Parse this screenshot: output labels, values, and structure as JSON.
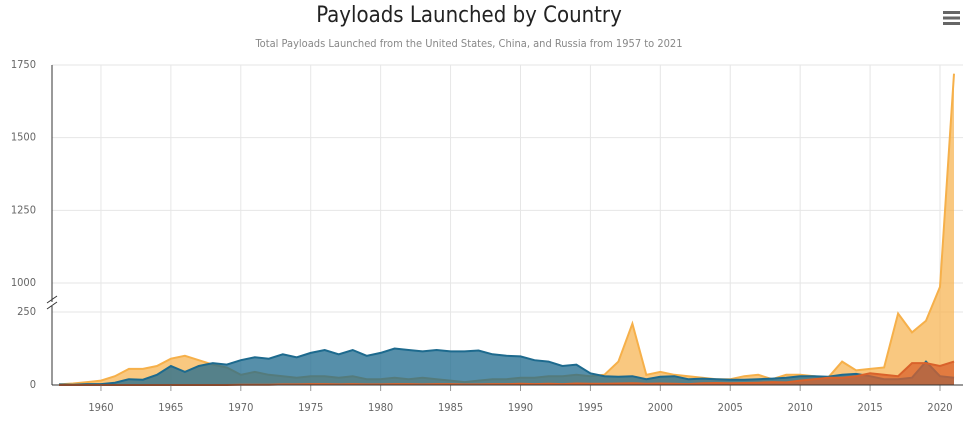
{
  "chart_data": {
    "type": "area",
    "title": "Payloads Launched by Country",
    "subtitle": "Total Payloads Launched from the United States, China, and Russia from 1957 to 2021",
    "x": [
      1957,
      1958,
      1959,
      1960,
      1961,
      1962,
      1963,
      1964,
      1965,
      1966,
      1967,
      1968,
      1969,
      1970,
      1971,
      1972,
      1973,
      1974,
      1975,
      1976,
      1977,
      1978,
      1979,
      1980,
      1981,
      1982,
      1983,
      1984,
      1985,
      1986,
      1987,
      1988,
      1989,
      1990,
      1991,
      1992,
      1993,
      1994,
      1995,
      1996,
      1997,
      1998,
      1999,
      2000,
      2001,
      2002,
      2003,
      2004,
      2005,
      2006,
      2007,
      2008,
      2009,
      2010,
      2011,
      2012,
      2013,
      2014,
      2015,
      2016,
      2017,
      2018,
      2019,
      2020,
      2021
    ],
    "xlim": [
      1957,
      2021
    ],
    "xticks": [
      1960,
      1965,
      1970,
      1975,
      1980,
      1985,
      1990,
      1995,
      2000,
      2005,
      2010,
      2015,
      2020
    ],
    "ylim": [
      0,
      1750
    ],
    "axis_break": [
      250,
      1000
    ],
    "yticks": [
      0,
      250,
      1000,
      1250,
      1500,
      1750
    ],
    "grid": true,
    "series": [
      {
        "color": "#f6b04a",
        "values": [
          2,
          5,
          10,
          15,
          30,
          55,
          55,
          65,
          90,
          100,
          85,
          70,
          60,
          35,
          45,
          35,
          30,
          25,
          30,
          30,
          25,
          30,
          20,
          20,
          25,
          20,
          25,
          20,
          15,
          10,
          15,
          20,
          20,
          25,
          25,
          30,
          30,
          35,
          30,
          35,
          80,
          210,
          35,
          45,
          35,
          30,
          25,
          20,
          20,
          30,
          35,
          20,
          35,
          35,
          30,
          25,
          80,
          50,
          55,
          60,
          245,
          180,
          220,
          900,
          1720
        ]
      },
      {
        "color": "#1d6a8e",
        "values": [
          2,
          1,
          3,
          3,
          8,
          20,
          18,
          35,
          65,
          45,
          65,
          75,
          70,
          85,
          95,
          90,
          105,
          95,
          110,
          120,
          105,
          120,
          100,
          110,
          125,
          120,
          115,
          120,
          115,
          115,
          118,
          105,
          100,
          98,
          85,
          80,
          65,
          70,
          40,
          30,
          28,
          30,
          20,
          28,
          30,
          20,
          22,
          20,
          18,
          18,
          20,
          22,
          25,
          30,
          30,
          28,
          35,
          38,
          30,
          20,
          20,
          25,
          80,
          30,
          25
        ]
      },
      {
        "color": "#d9622b",
        "values": [
          0,
          0,
          0,
          0,
          0,
          0,
          0,
          0,
          0,
          0,
          0,
          0,
          0,
          1,
          1,
          1,
          2,
          2,
          3,
          3,
          2,
          3,
          2,
          2,
          3,
          3,
          2,
          3,
          3,
          2,
          2,
          3,
          3,
          4,
          3,
          4,
          3,
          5,
          4,
          4,
          5,
          6,
          4,
          5,
          4,
          3,
          6,
          7,
          6,
          7,
          8,
          10,
          9,
          15,
          20,
          25,
          25,
          30,
          40,
          35,
          30,
          75,
          75,
          65,
          80
        ]
      }
    ]
  }
}
